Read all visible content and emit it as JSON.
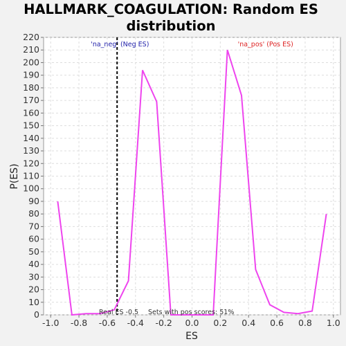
{
  "chart_data": {
    "type": "line",
    "title_lines": [
      "HALLMARK_COAGULATION: Random ES",
      "distribution"
    ],
    "xlabel": "ES",
    "ylabel": "P(ES)",
    "xlim": [
      -1.05,
      1.05
    ],
    "ylim": [
      0,
      220
    ],
    "x_ticks": [
      -1.0,
      -0.8,
      -0.6,
      -0.4,
      -0.2,
      0.0,
      0.2,
      0.4,
      0.6,
      0.8,
      1.0
    ],
    "x_tick_labels": [
      "-1.0",
      "-0.8",
      "-0.6",
      "-0.4",
      "-0.2",
      "0.0",
      "0.2",
      "0.4",
      "0.6",
      "0.8",
      "1.0"
    ],
    "y_ticks": [
      0,
      10,
      20,
      30,
      40,
      50,
      60,
      70,
      80,
      90,
      100,
      110,
      120,
      130,
      140,
      150,
      160,
      170,
      180,
      190,
      200,
      210,
      220
    ],
    "grid": true,
    "series": [
      {
        "color": "#ee44ee",
        "x": [
          -0.95,
          -0.85,
          -0.75,
          -0.65,
          -0.55,
          -0.45,
          -0.35,
          -0.25,
          -0.15,
          -0.05,
          0.05,
          0.15,
          0.25,
          0.35,
          0.45,
          0.55,
          0.65,
          0.75,
          0.85,
          0.95
        ],
        "y": [
          90,
          0,
          1,
          1,
          4,
          27,
          194,
          169,
          0,
          0,
          0,
          0,
          210,
          174,
          36,
          8,
          2,
          1,
          3,
          80
        ]
      }
    ],
    "real_es_line": {
      "x": -0.53,
      "color": "#000000"
    },
    "annotations": [
      {
        "text": "'na_neg' (Neg ES)",
        "color": "#2222aa",
        "x": -0.51,
        "y": 213
      },
      {
        "text": "'na_pos' (Pos ES)",
        "color": "#dd2222",
        "x": 0.52,
        "y": 213
      }
    ],
    "footer_left": "Real ES -0.5",
    "footer_right": "Sets with pos scores: 51%"
  }
}
